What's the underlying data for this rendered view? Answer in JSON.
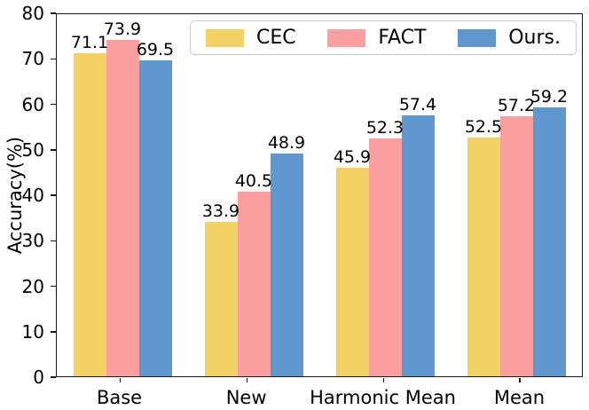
{
  "chart_data": {
    "type": "bar",
    "title": "",
    "xlabel": "",
    "ylabel": "Accuracy(%)",
    "ylim": [
      0,
      80
    ],
    "yticks": [
      0,
      10,
      20,
      30,
      40,
      50,
      60,
      70,
      80
    ],
    "categories": [
      "Base",
      "New",
      "Harmonic Mean",
      "Mean"
    ],
    "series": [
      {
        "name": "CEC",
        "color": "#F2D264",
        "values": [
          71.1,
          33.9,
          45.9,
          52.5
        ]
      },
      {
        "name": "FACT",
        "color": "#FC9FA0",
        "values": [
          73.9,
          40.5,
          52.3,
          57.2
        ]
      },
      {
        "name": "Ours.",
        "color": "#5F97CE",
        "values": [
          69.5,
          48.9,
          57.4,
          59.2
        ]
      }
    ],
    "grid": false,
    "legend_position": "upper right",
    "value_label_decimals": 1
  }
}
